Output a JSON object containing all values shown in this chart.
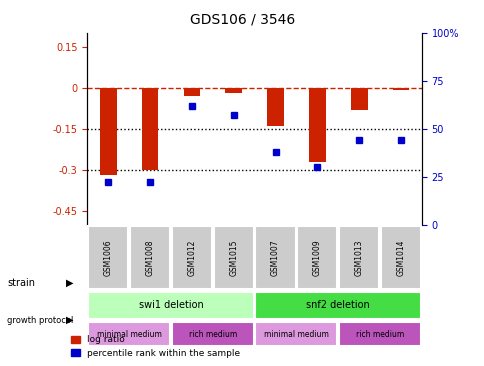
{
  "title": "GDS106 / 3546",
  "samples": [
    "GSM1006",
    "GSM1008",
    "GSM1012",
    "GSM1015",
    "GSM1007",
    "GSM1009",
    "GSM1013",
    "GSM1014"
  ],
  "log_ratio": [
    -0.32,
    -0.3,
    -0.03,
    -0.02,
    -0.14,
    -0.27,
    -0.08,
    -0.01
  ],
  "percentile_rank": [
    22,
    22,
    62,
    57,
    38,
    30,
    44,
    44
  ],
  "ylim_left": [
    -0.5,
    0.2
  ],
  "ylim_right": [
    0,
    100
  ],
  "left_yticks": [
    0.15,
    0,
    -0.15,
    -0.3,
    -0.45
  ],
  "left_yticklabels": [
    "0.15",
    "0",
    "-0.15",
    "-0.3",
    "-0.45"
  ],
  "right_yticks": [
    100,
    75,
    50,
    25,
    0
  ],
  "right_yticklabels": [
    "100%",
    "75",
    "50",
    "25",
    "0"
  ],
  "strain_groups": [
    {
      "label": "swi1 deletion",
      "start": 0,
      "end": 4,
      "color": "#bbffbb"
    },
    {
      "label": "snf2 deletion",
      "start": 4,
      "end": 8,
      "color": "#44dd44"
    }
  ],
  "growth_groups": [
    {
      "label": "minimal medium",
      "start": 0,
      "end": 2,
      "color": "#dd99dd"
    },
    {
      "label": "rich medium",
      "start": 2,
      "end": 4,
      "color": "#bb55bb"
    },
    {
      "label": "minimal medium",
      "start": 4,
      "end": 6,
      "color": "#dd99dd"
    },
    {
      "label": "rich medium",
      "start": 6,
      "end": 8,
      "color": "#bb55bb"
    }
  ],
  "bar_color": "#cc2200",
  "dot_color": "#0000cc",
  "zero_line_color": "#cc2200",
  "dotted_line_color": "#000000",
  "sample_box_color": "#cccccc",
  "legend_items": [
    "log ratio",
    "percentile rank within the sample"
  ]
}
